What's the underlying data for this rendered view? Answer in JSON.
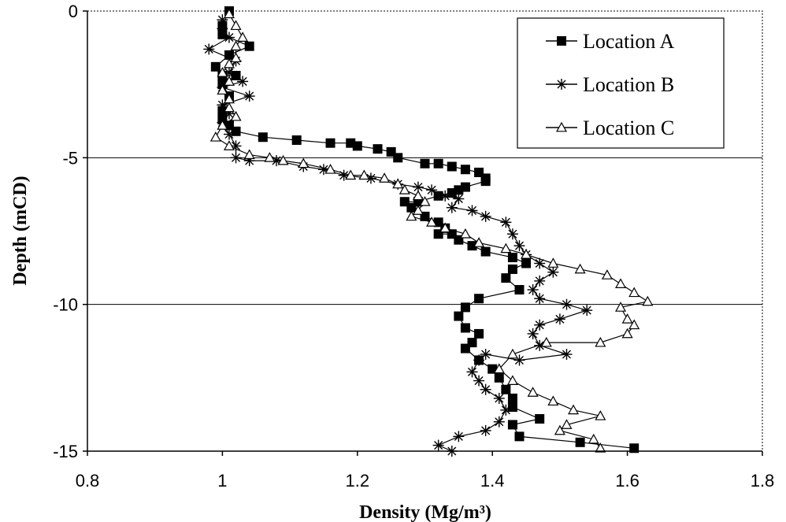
{
  "chart_data": {
    "type": "line",
    "title": "",
    "xlabel": "Density (Mg/m³)",
    "ylabel": "Depth (mCD)",
    "xlim": [
      0.8,
      1.8
    ],
    "ylim": [
      -15,
      0
    ],
    "xticks": [
      "0.8",
      "1",
      "1.2",
      "1.4",
      "1.6",
      "1.8"
    ],
    "yticks": [
      "0",
      "-5",
      "-10",
      "-15"
    ],
    "grid": "horizontal",
    "legend_position": "top-right",
    "series": [
      {
        "name": "Location A",
        "marker": "square",
        "points": [
          [
            1.01,
            0
          ],
          [
            1.0,
            -0.5
          ],
          [
            1.0,
            -0.8
          ],
          [
            1.04,
            -1.2
          ],
          [
            1.01,
            -1.5
          ],
          [
            0.99,
            -1.9
          ],
          [
            1.0,
            -2.2
          ],
          [
            1.02,
            -2.2
          ],
          [
            1.0,
            -2.5
          ],
          [
            1.01,
            -2.9
          ],
          [
            1.0,
            -3.4
          ],
          [
            1.0,
            -3.7
          ],
          [
            1.01,
            -3.9
          ],
          [
            1.02,
            -4.1
          ],
          [
            1.06,
            -4.3
          ],
          [
            1.11,
            -4.4
          ],
          [
            1.16,
            -4.5
          ],
          [
            1.19,
            -4.5
          ],
          [
            1.2,
            -4.6
          ],
          [
            1.23,
            -4.7
          ],
          [
            1.25,
            -4.8
          ],
          [
            1.26,
            -5.0
          ],
          [
            1.3,
            -5.2
          ],
          [
            1.32,
            -5.2
          ],
          [
            1.34,
            -5.3
          ],
          [
            1.36,
            -5.4
          ],
          [
            1.38,
            -5.5
          ],
          [
            1.39,
            -5.7
          ],
          [
            1.39,
            -5.8
          ],
          [
            1.36,
            -6.0
          ],
          [
            1.35,
            -6.1
          ],
          [
            1.34,
            -6.2
          ],
          [
            1.32,
            -6.3
          ],
          [
            1.29,
            -6.5
          ],
          [
            1.27,
            -6.5
          ],
          [
            1.28,
            -6.7
          ],
          [
            1.3,
            -7.0
          ],
          [
            1.32,
            -7.2
          ],
          [
            1.33,
            -7.4
          ],
          [
            1.32,
            -7.6
          ],
          [
            1.34,
            -7.6
          ],
          [
            1.35,
            -7.8
          ],
          [
            1.37,
            -8.0
          ],
          [
            1.39,
            -8.2
          ],
          [
            1.43,
            -8.4
          ],
          [
            1.45,
            -8.6
          ],
          [
            1.43,
            -8.8
          ],
          [
            1.42,
            -9.1
          ],
          [
            1.44,
            -9.5
          ],
          [
            1.38,
            -9.8
          ],
          [
            1.36,
            -10.1
          ],
          [
            1.35,
            -10.4
          ],
          [
            1.36,
            -10.8
          ],
          [
            1.38,
            -11.0
          ],
          [
            1.37,
            -11.3
          ],
          [
            1.36,
            -11.5
          ],
          [
            1.38,
            -11.9
          ],
          [
            1.4,
            -12.2
          ],
          [
            1.41,
            -12.5
          ],
          [
            1.42,
            -12.9
          ],
          [
            1.43,
            -13.2
          ],
          [
            1.43,
            -13.5
          ],
          [
            1.47,
            -13.9
          ],
          [
            1.43,
            -14.1
          ],
          [
            1.44,
            -14.5
          ],
          [
            1.53,
            -14.7
          ],
          [
            1.61,
            -14.9
          ]
        ]
      },
      {
        "name": "Location B",
        "marker": "asterisk",
        "points": [
          [
            1.0,
            -0.3
          ],
          [
            1.0,
            -0.6
          ],
          [
            1.01,
            -0.9
          ],
          [
            0.98,
            -1.3
          ],
          [
            1.02,
            -1.7
          ],
          [
            1.01,
            -2.1
          ],
          [
            1.03,
            -2.4
          ],
          [
            1.0,
            -2.6
          ],
          [
            1.04,
            -2.9
          ],
          [
            1.0,
            -3.2
          ],
          [
            1.01,
            -3.5
          ],
          [
            1.0,
            -3.8
          ],
          [
            1.01,
            -4.2
          ],
          [
            1.02,
            -4.6
          ],
          [
            1.02,
            -5.0
          ],
          [
            1.04,
            -5.1
          ],
          [
            1.08,
            -5.1
          ],
          [
            1.12,
            -5.3
          ],
          [
            1.15,
            -5.4
          ],
          [
            1.18,
            -5.6
          ],
          [
            1.22,
            -5.7
          ],
          [
            1.26,
            -5.9
          ],
          [
            1.29,
            -6.0
          ],
          [
            1.31,
            -6.1
          ],
          [
            1.33,
            -6.3
          ],
          [
            1.35,
            -6.4
          ],
          [
            1.34,
            -6.7
          ],
          [
            1.37,
            -6.8
          ],
          [
            1.39,
            -7.0
          ],
          [
            1.42,
            -7.2
          ],
          [
            1.43,
            -7.6
          ],
          [
            1.44,
            -8.0
          ],
          [
            1.45,
            -8.3
          ],
          [
            1.47,
            -8.6
          ],
          [
            1.49,
            -8.9
          ],
          [
            1.47,
            -9.2
          ],
          [
            1.46,
            -9.5
          ],
          [
            1.47,
            -9.8
          ],
          [
            1.51,
            -10.0
          ],
          [
            1.54,
            -10.2
          ],
          [
            1.5,
            -10.5
          ],
          [
            1.47,
            -10.7
          ],
          [
            1.46,
            -11.0
          ],
          [
            1.47,
            -11.4
          ],
          [
            1.51,
            -11.7
          ],
          [
            1.44,
            -11.9
          ],
          [
            1.39,
            -11.7
          ],
          [
            1.38,
            -11.9
          ],
          [
            1.37,
            -12.3
          ],
          [
            1.38,
            -12.6
          ],
          [
            1.39,
            -12.9
          ],
          [
            1.41,
            -13.2
          ],
          [
            1.42,
            -13.6
          ],
          [
            1.41,
            -14.0
          ],
          [
            1.39,
            -14.3
          ],
          [
            1.35,
            -14.5
          ],
          [
            1.32,
            -14.8
          ],
          [
            1.34,
            -15.0
          ]
        ]
      },
      {
        "name": "Location C",
        "marker": "triangle",
        "points": [
          [
            1.01,
            -0.1
          ],
          [
            1.02,
            -0.5
          ],
          [
            1.03,
            -0.9
          ],
          [
            1.02,
            -1.2
          ],
          [
            1.02,
            -1.6
          ],
          [
            1.01,
            -1.8
          ],
          [
            1.0,
            -2.1
          ],
          [
            1.01,
            -2.4
          ],
          [
            1.0,
            -2.7
          ],
          [
            1.01,
            -3.0
          ],
          [
            1.01,
            -3.3
          ],
          [
            1.02,
            -3.6
          ],
          [
            1.0,
            -3.9
          ],
          [
            0.99,
            -4.3
          ],
          [
            1.01,
            -4.6
          ],
          [
            1.04,
            -4.9
          ],
          [
            1.07,
            -5.0
          ],
          [
            1.09,
            -5.1
          ],
          [
            1.12,
            -5.2
          ],
          [
            1.16,
            -5.4
          ],
          [
            1.19,
            -5.6
          ],
          [
            1.21,
            -5.6
          ],
          [
            1.24,
            -5.7
          ],
          [
            1.26,
            -5.9
          ],
          [
            1.27,
            -6.1
          ],
          [
            1.29,
            -6.3
          ],
          [
            1.3,
            -6.5
          ],
          [
            1.29,
            -6.8
          ],
          [
            1.28,
            -7.0
          ],
          [
            1.31,
            -7.2
          ],
          [
            1.33,
            -7.4
          ],
          [
            1.36,
            -7.6
          ],
          [
            1.38,
            -7.9
          ],
          [
            1.42,
            -8.1
          ],
          [
            1.45,
            -8.3
          ],
          [
            1.49,
            -8.6
          ],
          [
            1.53,
            -8.8
          ],
          [
            1.57,
            -9.0
          ],
          [
            1.59,
            -9.3
          ],
          [
            1.61,
            -9.6
          ],
          [
            1.63,
            -9.9
          ],
          [
            1.59,
            -10.1
          ],
          [
            1.6,
            -10.5
          ],
          [
            1.61,
            -10.7
          ],
          [
            1.6,
            -11.0
          ],
          [
            1.56,
            -11.3
          ],
          [
            1.48,
            -11.3
          ],
          [
            1.43,
            -11.7
          ],
          [
            1.41,
            -12.2
          ],
          [
            1.43,
            -12.6
          ],
          [
            1.46,
            -13.0
          ],
          [
            1.49,
            -13.3
          ],
          [
            1.52,
            -13.6
          ],
          [
            1.56,
            -13.8
          ],
          [
            1.51,
            -14.1
          ],
          [
            1.5,
            -14.3
          ],
          [
            1.55,
            -14.6
          ],
          [
            1.56,
            -14.9
          ]
        ]
      }
    ]
  }
}
